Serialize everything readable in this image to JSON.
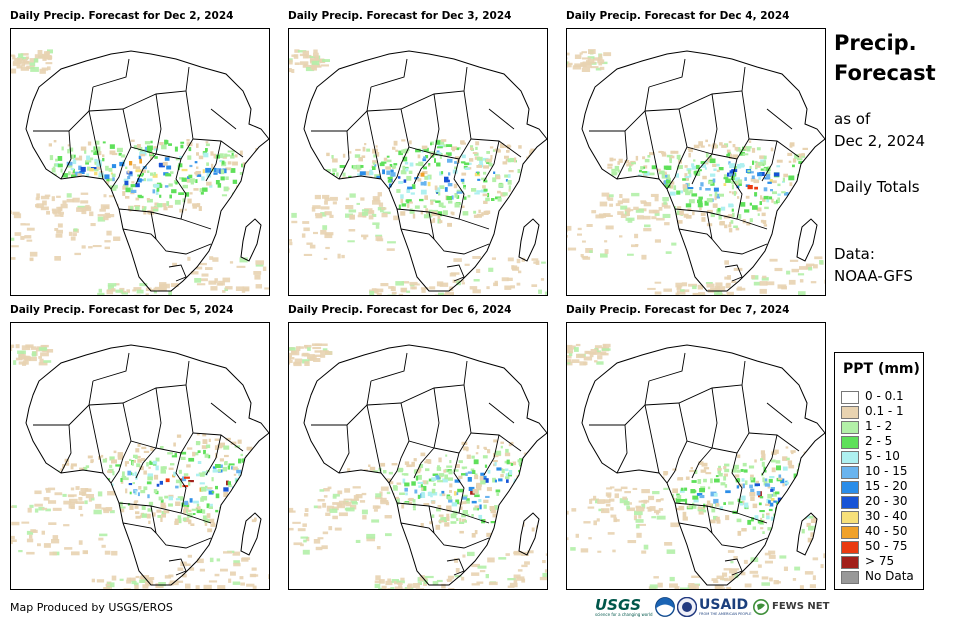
{
  "panels": [
    {
      "title": "Daily Precip. Forecast for Dec 2, 2024",
      "seed": 11
    },
    {
      "title": "Daily Precip. Forecast for Dec 3, 2024",
      "seed": 23
    },
    {
      "title": "Daily Precip. Forecast for Dec 4, 2024",
      "seed": 37
    },
    {
      "title": "Daily Precip. Forecast for Dec 5, 2024",
      "seed": 41
    },
    {
      "title": "Daily Precip. Forecast for Dec 6, 2024",
      "seed": 53
    },
    {
      "title": "Daily Precip. Forecast for Dec 7, 2024",
      "seed": 67
    }
  ],
  "side": {
    "title_line1": "Precip.",
    "title_line2": "Forecast",
    "asof_line1": "as of",
    "asof_line2": "Dec 2, 2024",
    "totals": "Daily Totals",
    "data_line1": "Data:",
    "data_line2": "NOAA-GFS"
  },
  "legend": {
    "title": "PPT (mm)",
    "items": [
      {
        "label": "0 - 0.1",
        "color": "#ffffff"
      },
      {
        "label": "0.1 - 1",
        "color": "#e8d3b1"
      },
      {
        "label": "1 - 2",
        "color": "#b3f0a8"
      },
      {
        "label": "2 - 5",
        "color": "#5fe05a"
      },
      {
        "label": "5 - 10",
        "color": "#aef0f0"
      },
      {
        "label": "10 - 15",
        "color": "#6ab4ef"
      },
      {
        "label": "15 - 20",
        "color": "#2b8de8"
      },
      {
        "label": "20 - 30",
        "color": "#1753d6"
      },
      {
        "label": "30 - 40",
        "color": "#f7e07a"
      },
      {
        "label": "40 - 50",
        "color": "#f0a12a"
      },
      {
        "label": "50 - 75",
        "color": "#ea3a10"
      },
      {
        "label": "> 75",
        "color": "#a2201a"
      },
      {
        "label": "No Data",
        "color": "#999999"
      }
    ]
  },
  "footer": {
    "credit": "Map Produced by USGS/EROS",
    "logo_usgs": "USGS",
    "logo_usgs_tagline": "science for a changing world",
    "logo_usaid": "USAID",
    "logo_usaid_tagline": "FROM THE AMERICAN PEOPLE",
    "logo_fews": "FEWS NET"
  }
}
